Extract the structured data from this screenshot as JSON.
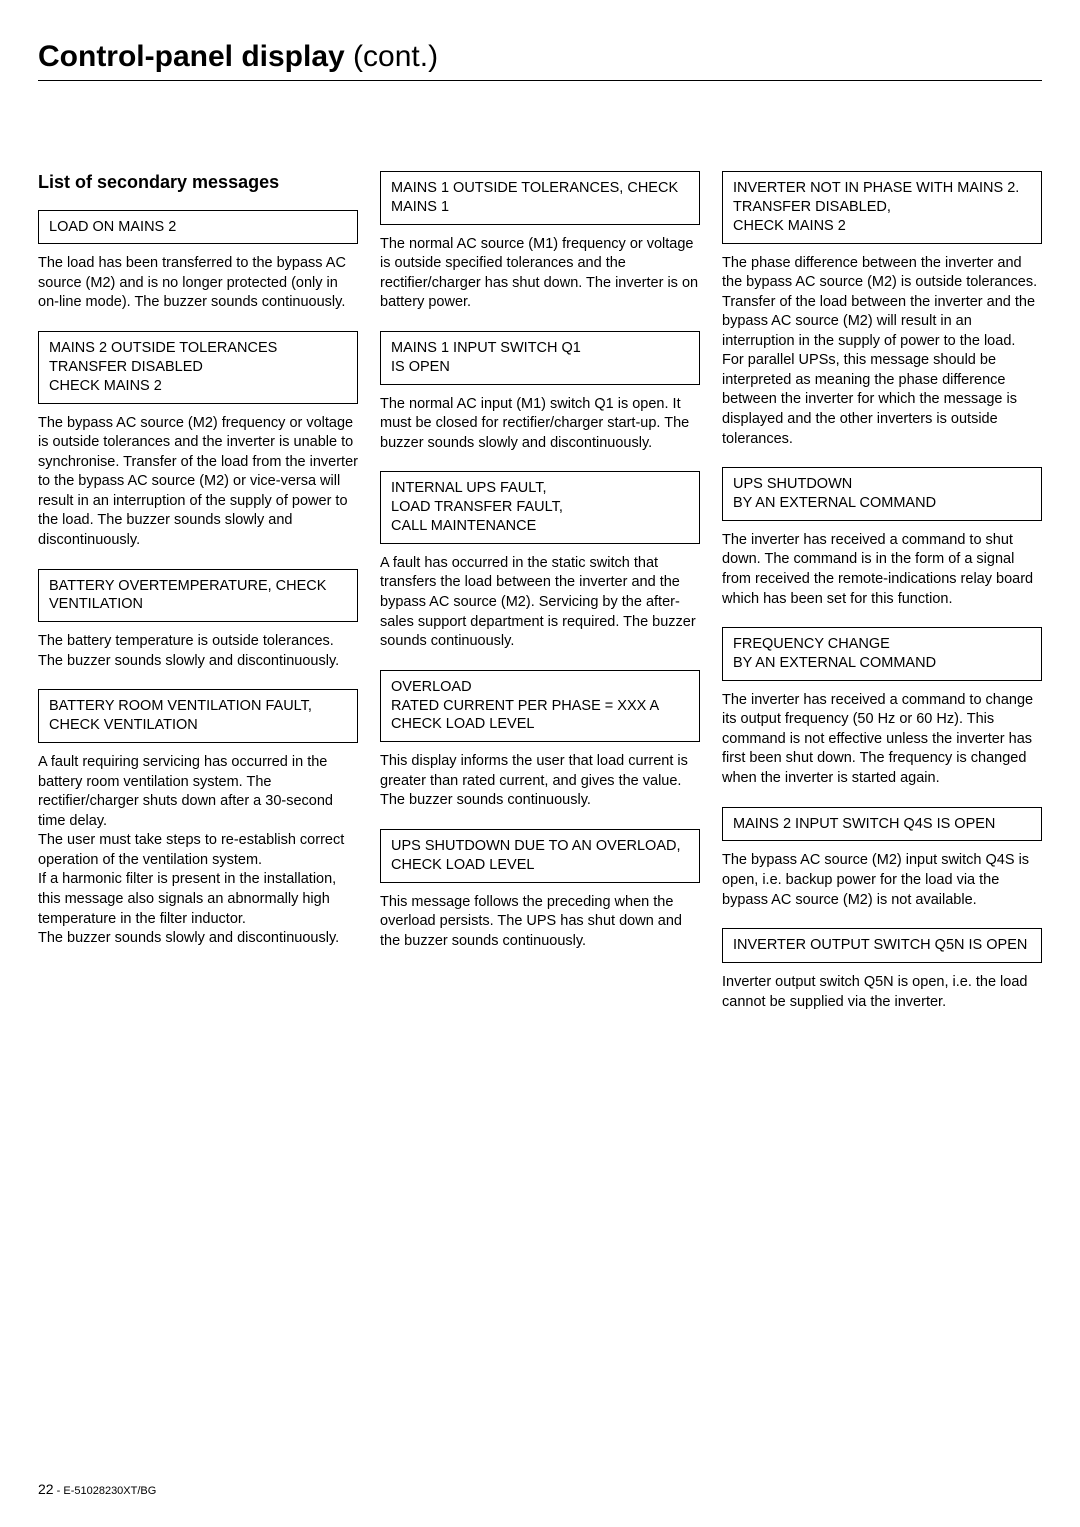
{
  "page_title_main": "Control-panel display",
  "page_title_cont": " (cont.)",
  "section_title": "List of secondary messages",
  "col1": {
    "box1": "LOAD ON MAINS 2",
    "text1": "The load has been transferred to the bypass AC source (M2) and is no longer protected (only in on-line mode). The buzzer sounds continuously.",
    "box2": "MAINS 2 OUTSIDE TOLERANCES TRANSFER DISABLED\nCHECK MAINS 2",
    "text2": "The bypass AC source (M2) frequency or voltage is outside tolerances and the inverter is unable to synchronise. Transfer of the load from the inverter to the bypass AC source (M2) or vice-versa will result in an interruption of the supply of power to the load. The buzzer sounds slowly and discontinuously.",
    "box3": "BATTERY OVERTEMPERATURE, CHECK VENTILATION",
    "text3": "The battery temperature is outside tolerances. The buzzer sounds slowly and discontinuously.",
    "box4": "BATTERY ROOM VENTILATION FAULT,\nCHECK VENTILATION",
    "text4a": "A fault requiring servicing has occurred in the battery room ventilation system. The rectifier/charger shuts down after a 30-second time delay.",
    "text4b": "The user must take steps to re-establish correct operation of the ventilation system.",
    "text4c": "If a harmonic filter is present in the installation, this message also signals an abnormally high temperature in the filter inductor.",
    "text4d": "The buzzer sounds slowly and discontinuously."
  },
  "col2": {
    "box1": "MAINS 1 OUTSIDE TOLERANCES, CHECK MAINS 1",
    "text1": "The normal AC source (M1) frequency or voltage is outside specified tolerances and the rectifier/charger has shut down. The inverter is on battery power.",
    "box2": "MAINS 1 INPUT SWITCH Q1\nIS OPEN",
    "text2": "The normal AC input (M1) switch Q1 is open. It must be closed for rectifier/charger start-up. The buzzer sounds slowly and discontinuously.",
    "box3": "INTERNAL UPS FAULT,\nLOAD TRANSFER FAULT,\nCALL MAINTENANCE",
    "text3": "A fault has occurred in the static switch that transfers the load between the inverter and the bypass AC source (M2). Servicing by the after-sales support department is required. The buzzer sounds continuously.",
    "box4": "OVERLOAD\nRATED CURRENT PER PHASE = XXX A\nCHECK LOAD LEVEL",
    "text4": "This display informs the user that load current is greater than rated current, and gives the value. The buzzer sounds continuously.",
    "box5": "UPS SHUTDOWN DUE TO AN OVERLOAD,\nCHECK LOAD LEVEL",
    "text5": "This message follows the preceding when the overload persists. The UPS has shut down and the buzzer sounds continuously."
  },
  "col3": {
    "box1": "INVERTER NOT IN PHASE WITH MAINS 2.\nTRANSFER DISABLED,\nCHECK MAINS 2",
    "text1a": "The phase difference between the inverter and the bypass AC source (M2) is outside tolerances. Transfer of the load between the inverter and the bypass AC source (M2) will result in an interruption in the supply of power to the load.",
    "text1b": "For parallel UPSs, this message should be interpreted as meaning the phase difference between the inverter for which the message is displayed and the other inverters is outside tolerances.",
    "box2": "UPS SHUTDOWN\nBY AN EXTERNAL COMMAND",
    "text2": "The inverter has received a command to shut down. The command is in the form of a signal from received the remote-indications relay board which has been set for this function.",
    "box3": "FREQUENCY CHANGE\nBY AN EXTERNAL COMMAND",
    "text3": "The inverter has received a command to change its output frequency (50 Hz or 60 Hz). This command is not effective unless the inverter has first been shut down. The frequency is changed when the inverter is started again.",
    "box4": "MAINS 2 INPUT SWITCH Q4S IS OPEN",
    "text4": "The bypass AC source (M2) input switch Q4S is open, i.e. backup power for the load via the bypass AC source (M2) is not available.",
    "box5": "INVERTER OUTPUT SWITCH Q5N IS OPEN",
    "text5": "Inverter output switch Q5N is open, i.e. the load cannot be supplied via the inverter."
  },
  "footer_page": "22",
  "footer_sep": " - ",
  "footer_code": "E-51028230XT/BG"
}
